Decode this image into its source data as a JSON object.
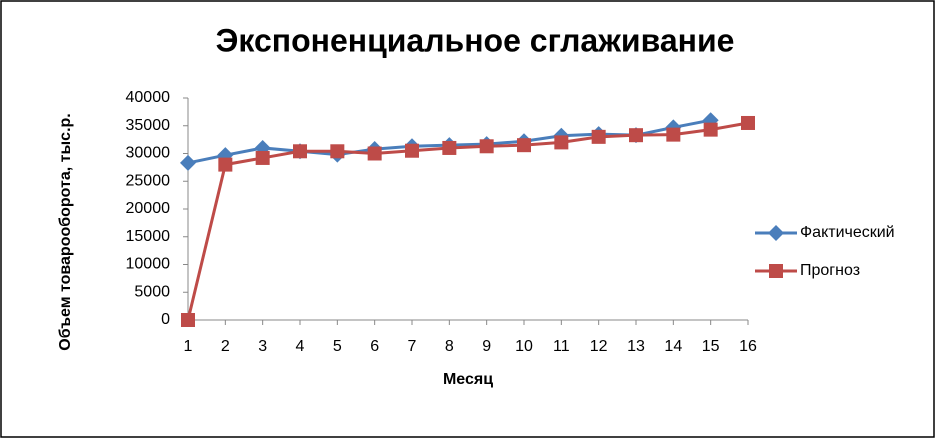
{
  "chart_data": {
    "type": "line",
    "title": "Экспоненциальное сглаживание",
    "x_label": "Месяц",
    "y_label": "Объем товарооборота, тыс.р.",
    "categories": [
      "1",
      "2",
      "3",
      "4",
      "5",
      "6",
      "7",
      "8",
      "9",
      "10",
      "11",
      "12",
      "13",
      "14",
      "15",
      "16"
    ],
    "series": [
      {
        "name": "Фактический",
        "color": "#4a7ebb",
        "marker": "diamond",
        "values": [
          28300,
          29700,
          31000,
          30400,
          29800,
          30800,
          31300,
          31500,
          31700,
          32200,
          33200,
          33500,
          33300,
          34700,
          36000,
          null
        ]
      },
      {
        "name": "Прогноз",
        "color": "#be4b48",
        "marker": "square",
        "values": [
          0,
          28000,
          29200,
          30400,
          30400,
          30000,
          30500,
          31000,
          31300,
          31500,
          32000,
          33000,
          33300,
          33400,
          34300,
          35500
        ]
      }
    ],
    "ylim": [
      0,
      40000
    ],
    "yticks": [
      0,
      5000,
      10000,
      15000,
      20000,
      25000,
      30000,
      35000,
      40000
    ],
    "legend": "right"
  }
}
